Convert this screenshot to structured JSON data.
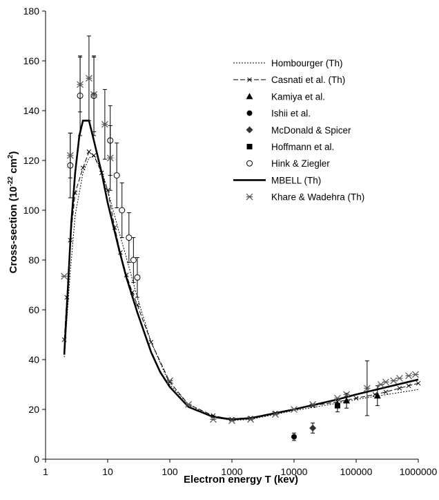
{
  "chart_data": {
    "type": "scatter",
    "xlabel": "Electron energy T (kev)",
    "ylabel_main": "Cross-section (10",
    "ylabel_exp1": "-22",
    "ylabel_mid": " cm",
    "ylabel_exp2": "2",
    "ylabel_end": ")",
    "x_scale": "log",
    "xlim": [
      1,
      1000000
    ],
    "ylim": [
      0,
      180
    ],
    "x_ticks": [
      1,
      10,
      100,
      1000,
      10000,
      100000,
      1000000
    ],
    "x_tick_labels": [
      "1",
      "10",
      "100",
      "1000",
      "10000",
      "100000",
      "1000000"
    ],
    "y_ticks": [
      0,
      20,
      40,
      60,
      80,
      100,
      120,
      140,
      160,
      180
    ],
    "y_tick_labels": [
      "0",
      "20",
      "40",
      "60",
      "80",
      "100",
      "120",
      "140",
      "160",
      "180"
    ],
    "grid": false,
    "legend_position": "top-right",
    "series": [
      {
        "name": "Hombourger (Th)",
        "style": "dotted-line",
        "points": [
          [
            2,
            41
          ],
          [
            2.5,
            75
          ],
          [
            3,
            98
          ],
          [
            4,
            115
          ],
          [
            5,
            121
          ],
          [
            6,
            122
          ],
          [
            8,
            116
          ],
          [
            10,
            108
          ],
          [
            15,
            92
          ],
          [
            20,
            81
          ],
          [
            30,
            65
          ],
          [
            50,
            47
          ],
          [
            100,
            30
          ],
          [
            200,
            22
          ],
          [
            500,
            17
          ],
          [
            1000,
            15.5
          ],
          [
            2000,
            16
          ],
          [
            5000,
            18
          ],
          [
            10000,
            19.5
          ],
          [
            50000,
            22.5
          ],
          [
            100000,
            24
          ],
          [
            1000000,
            28
          ]
        ]
      },
      {
        "name": "Casnati et al. (Th)",
        "style": "dashed-line-x",
        "points": [
          [
            2,
            48
          ],
          [
            2.2,
            65
          ],
          [
            2.5,
            88
          ],
          [
            3,
            107
          ],
          [
            4,
            117
          ],
          [
            5,
            123.5
          ],
          [
            6,
            122
          ],
          [
            8,
            115
          ],
          [
            10,
            108
          ],
          [
            13,
            93
          ],
          [
            16,
            83
          ],
          [
            20,
            74
          ],
          [
            25,
            67
          ],
          [
            30,
            62
          ],
          [
            50,
            47
          ],
          [
            100,
            31
          ],
          [
            200,
            22
          ],
          [
            500,
            17.5
          ],
          [
            1000,
            16
          ],
          [
            2000,
            16.5
          ],
          [
            5000,
            18.5
          ],
          [
            10000,
            20
          ],
          [
            20000,
            21.5
          ],
          [
            50000,
            23
          ],
          [
            100000,
            24.5
          ],
          [
            200000,
            26
          ],
          [
            300000,
            27
          ],
          [
            500000,
            28.5
          ],
          [
            700000,
            29.5
          ],
          [
            1000000,
            30.5
          ]
        ]
      },
      {
        "name": "Kamiya et al.",
        "style": "triangle",
        "points": [
          [
            70000,
            23.5
          ],
          [
            220000,
            25.5
          ]
        ],
        "errors": [
          3,
          4
        ]
      },
      {
        "name": "Ishii et al.",
        "style": "circle-filled",
        "points": [
          [
            10000,
            9
          ]
        ],
        "errors": [
          1.5
        ]
      },
      {
        "name": "McDonald & Spicer",
        "style": "diamond",
        "points": [
          [
            20000,
            12.5
          ]
        ],
        "errors": [
          2
        ]
      },
      {
        "name": "Hoffmann et al.",
        "style": "square",
        "points": [
          [
            50000,
            21.5
          ]
        ],
        "errors": [
          2.5
        ]
      },
      {
        "name": "Hink & Ziegler",
        "style": "circle-open",
        "points": [
          [
            2.5,
            118
          ],
          [
            3.6,
            146
          ],
          [
            6,
            146
          ],
          [
            11,
            128
          ],
          [
            14,
            114
          ],
          [
            17,
            100
          ],
          [
            22,
            89
          ],
          [
            26,
            80
          ],
          [
            30,
            73
          ]
        ],
        "errors": [
          13,
          16,
          16,
          14,
          13,
          11,
          10,
          9,
          8
        ]
      },
      {
        "name": "MBELL (Th)",
        "style": "solid-thick",
        "points": [
          [
            2,
            42
          ],
          [
            2.3,
            70
          ],
          [
            2.6,
            95
          ],
          [
            3,
            115
          ],
          [
            3.5,
            130
          ],
          [
            4,
            136
          ],
          [
            5,
            136
          ],
          [
            6,
            128
          ],
          [
            8,
            115
          ],
          [
            10,
            103
          ],
          [
            15,
            85
          ],
          [
            20,
            73
          ],
          [
            30,
            59
          ],
          [
            50,
            43
          ],
          [
            70,
            35
          ],
          [
            100,
            29
          ],
          [
            200,
            21
          ],
          [
            500,
            17
          ],
          [
            1000,
            16
          ],
          [
            2000,
            16.5
          ],
          [
            5000,
            18.5
          ],
          [
            10000,
            20
          ],
          [
            50000,
            24
          ],
          [
            100000,
            26
          ],
          [
            1000000,
            32
          ]
        ]
      },
      {
        "name": "Khare & Wadehra (Th)",
        "style": "asterisk",
        "points": [
          [
            2,
            73.5
          ],
          [
            2.5,
            122
          ],
          [
            3.6,
            150.5
          ],
          [
            5,
            153
          ],
          [
            6,
            146.5
          ],
          [
            9,
            134.5
          ],
          [
            11,
            121
          ],
          [
            100,
            31.5
          ],
          [
            200,
            22
          ],
          [
            500,
            16
          ],
          [
            1000,
            15.5
          ],
          [
            2000,
            16
          ],
          [
            5000,
            18
          ],
          [
            10000,
            20
          ],
          [
            20000,
            22
          ],
          [
            50000,
            24.5
          ],
          [
            70000,
            26
          ],
          [
            150000,
            28.5
          ],
          [
            250000,
            30
          ],
          [
            300000,
            31
          ],
          [
            400000,
            31.5
          ],
          [
            500000,
            32.5
          ],
          [
            700000,
            33.5
          ],
          [
            900000,
            34
          ]
        ],
        "errors": [
          0,
          9,
          11,
          17,
          15,
          14,
          13,
          0,
          0,
          0,
          0,
          0,
          0,
          0,
          0,
          0,
          0,
          11,
          0,
          0,
          0,
          0,
          0,
          0
        ]
      }
    ]
  }
}
